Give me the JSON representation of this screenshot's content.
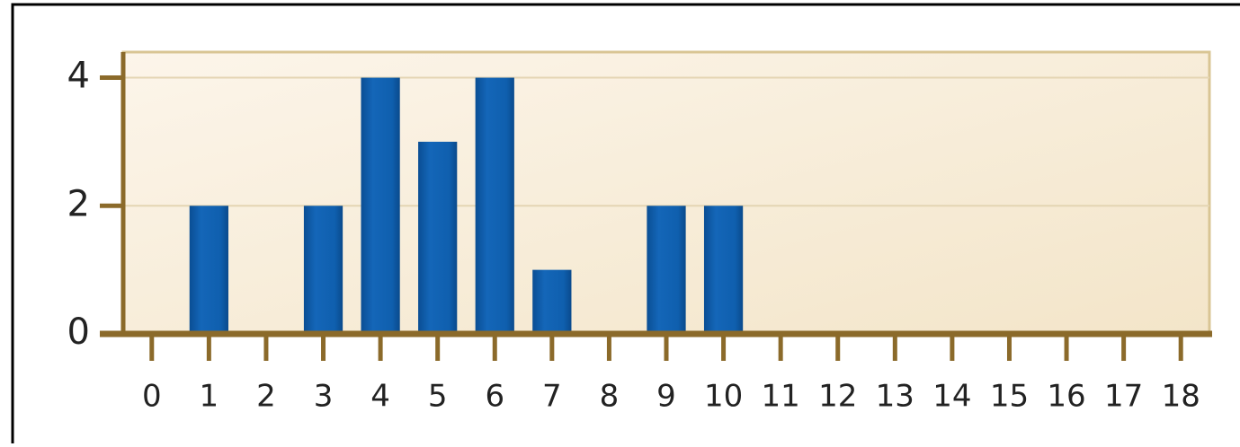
{
  "chart_data": {
    "type": "bar",
    "categories": [
      "0",
      "1",
      "2",
      "3",
      "4",
      "5",
      "6",
      "7",
      "8",
      "9",
      "10",
      "11",
      "12",
      "13",
      "14",
      "15",
      "16",
      "17",
      "18"
    ],
    "values": [
      0,
      2,
      0,
      2,
      4,
      3,
      4,
      1,
      0,
      2,
      2,
      0,
      0,
      0,
      0,
      0,
      0,
      0,
      0
    ],
    "color": "#0f5fae",
    "ylim": [
      0,
      4.4
    ],
    "yticks": [
      0,
      2,
      4
    ],
    "grid": true
  }
}
